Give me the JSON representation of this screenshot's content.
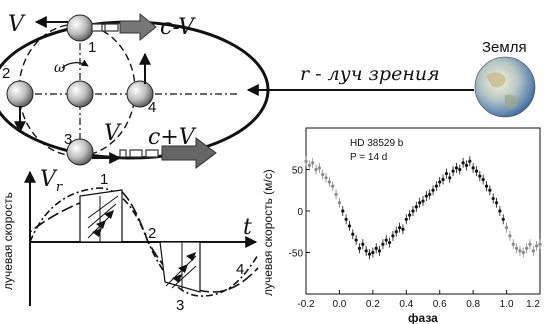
{
  "orbit": {
    "labels": {
      "v_top": "V",
      "c_minus_v": "c-V",
      "pos1": "1",
      "pos2": "2",
      "pos3": "3",
      "pos4": "4",
      "omega": "ω",
      "v_bottom": "V",
      "c_plus_v": "c+V"
    }
  },
  "earth": {
    "label": "Земля",
    "line_of_sight": "r - луч зрения"
  },
  "schematic": {
    "ylabel": "лучевая скорость",
    "vr": "V",
    "vr_sub": "r",
    "t": "t",
    "marks": [
      "1",
      "2",
      "3",
      "4"
    ]
  },
  "chart_data": {
    "type": "scatter",
    "title": "HD 38529 b",
    "subtitle": "P = 14 d",
    "xlabel": "фаза",
    "ylabel": "лучевая скорость (м/с)",
    "xlim": [
      -0.2,
      1.2
    ],
    "ylim": [
      -100,
      100
    ],
    "x_ticks": [
      "-0.2",
      "0.0",
      "0.2",
      "0.4",
      "0.6",
      "0.8",
      "1.0",
      "1.2"
    ],
    "y_ticks": [
      "-50",
      "0",
      "50"
    ],
    "points_x": [
      -0.2,
      -0.18,
      -0.16,
      -0.14,
      -0.12,
      -0.1,
      -0.08,
      -0.06,
      -0.04,
      -0.02,
      0.0,
      0.02,
      0.04,
      0.06,
      0.08,
      0.1,
      0.12,
      0.14,
      0.16,
      0.18,
      0.2,
      0.22,
      0.24,
      0.26,
      0.28,
      0.3,
      0.32,
      0.34,
      0.36,
      0.38,
      0.4,
      0.42,
      0.44,
      0.46,
      0.48,
      0.5,
      0.52,
      0.54,
      0.56,
      0.58,
      0.6,
      0.62,
      0.64,
      0.66,
      0.68,
      0.7,
      0.72,
      0.74,
      0.76,
      0.78,
      0.8,
      0.82,
      0.84,
      0.86,
      0.88,
      0.9,
      0.92,
      0.94,
      0.96,
      0.98,
      1.0,
      1.02,
      1.04,
      1.06,
      1.08,
      1.1,
      1.12,
      1.14,
      1.16,
      1.18,
      1.2
    ],
    "points_y": [
      60,
      55,
      58,
      50,
      52,
      44,
      40,
      35,
      30,
      20,
      10,
      0,
      -10,
      -18,
      -28,
      -35,
      -45,
      -40,
      -48,
      -52,
      -50,
      -45,
      -48,
      -40,
      -35,
      -38,
      -30,
      -25,
      -20,
      -22,
      -10,
      -5,
      0,
      5,
      10,
      12,
      18,
      20,
      25,
      30,
      35,
      38,
      45,
      40,
      48,
      52,
      50,
      58,
      55,
      60,
      52,
      48,
      42,
      38,
      30,
      25,
      15,
      10,
      0,
      -10,
      -20,
      -30,
      -40,
      -45,
      -48,
      -50,
      -45,
      -40,
      -48,
      -42,
      -40
    ],
    "grey_ranges": [
      [
        -0.2,
        0.0
      ],
      [
        1.0,
        1.2
      ]
    ]
  }
}
